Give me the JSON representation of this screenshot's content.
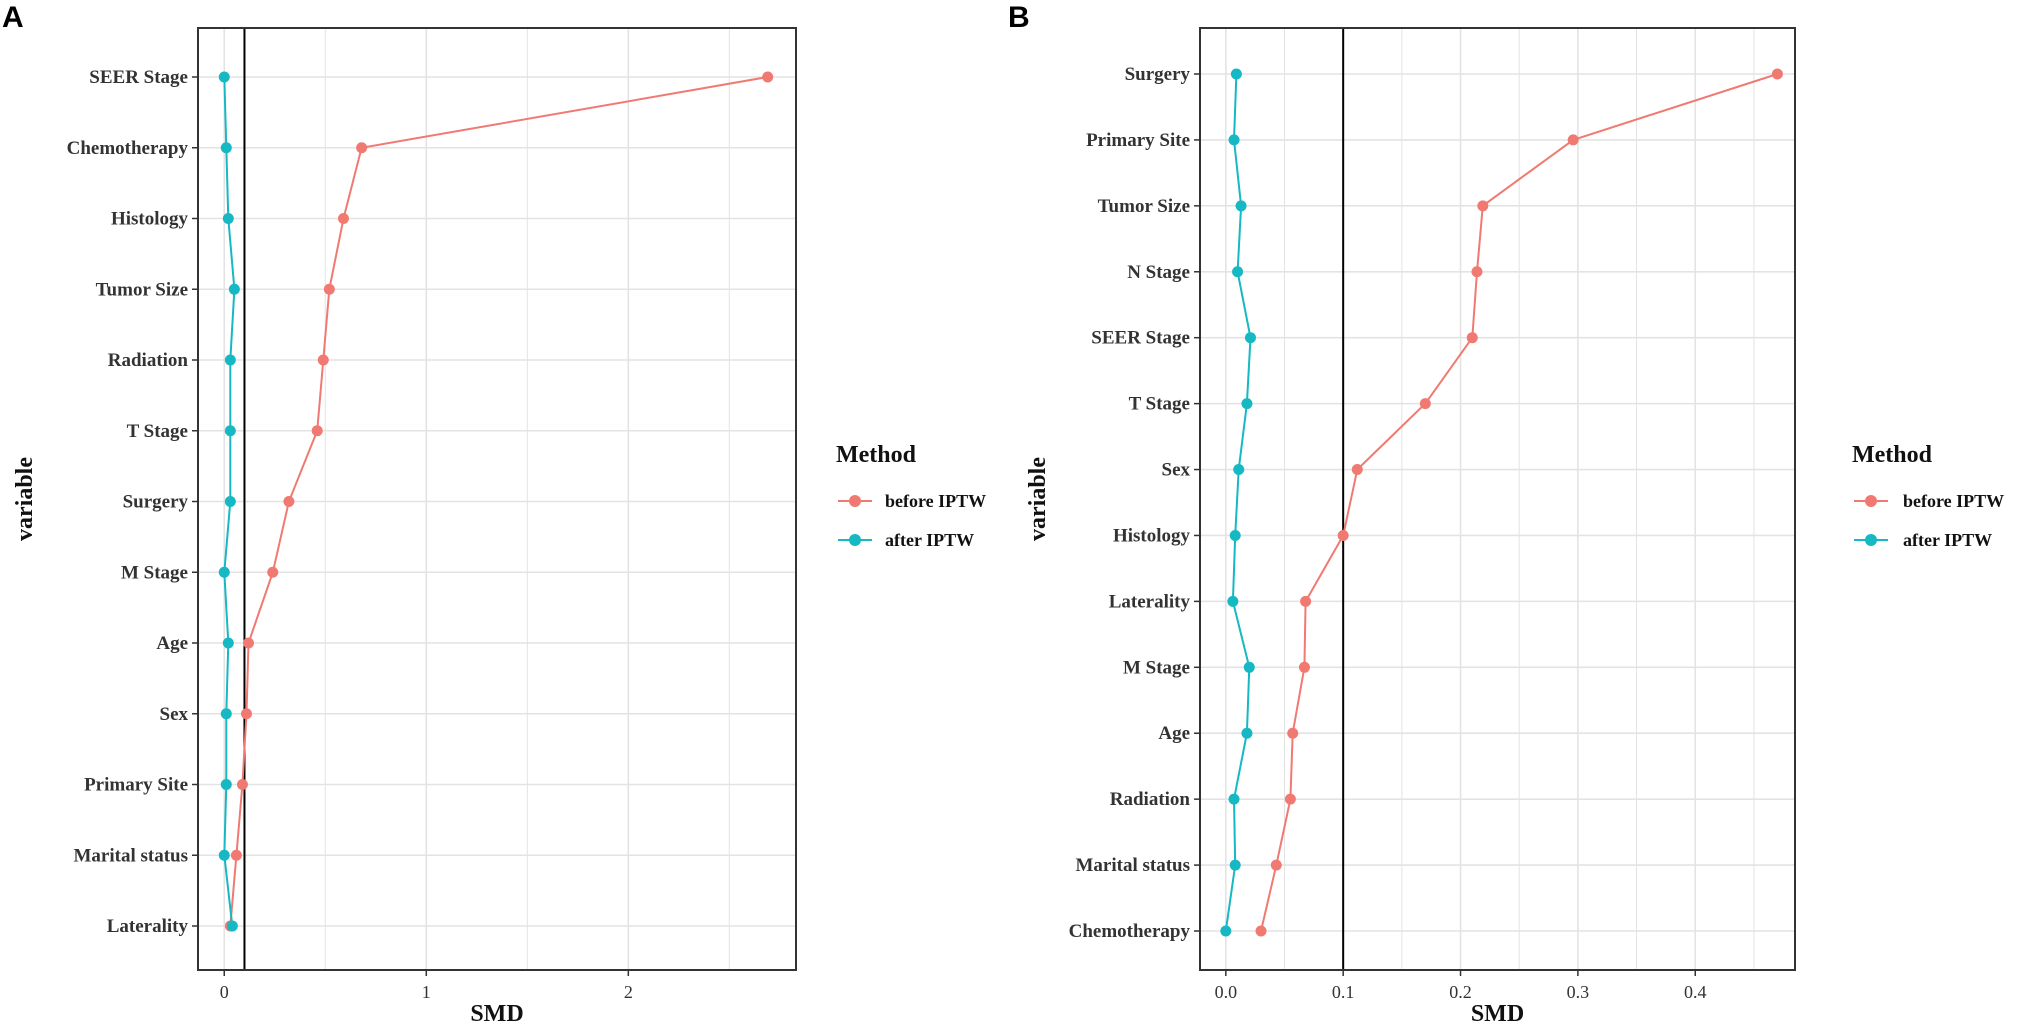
{
  "figure": {
    "legend_title": "Method",
    "series_names": [
      "before IPTW",
      "after IPTW"
    ],
    "colors": {
      "before": "#F07A72",
      "after": "#15B8C3",
      "grid": "#E3E3E3",
      "refline": "#000000"
    }
  },
  "chart_data": [
    {
      "panel_label": "A",
      "type": "line",
      "title": "",
      "xlabel": "SMD",
      "ylabel": "variable",
      "xlim": [
        -0.13,
        2.83
      ],
      "xticks": [
        0,
        1,
        2
      ],
      "xtick_labels": [
        "0",
        "1",
        "2"
      ],
      "reference_line": 0.1,
      "grid": true,
      "legend_position": "right",
      "categories": [
        "SEER Stage",
        "Chemotherapy",
        "Histology",
        "Tumor Size",
        "Radiation",
        "T Stage",
        "Surgery",
        "M Stage",
        "Age",
        "Sex",
        "Primary Site",
        "Marital status",
        "Laterality"
      ],
      "series": [
        {
          "name": "before IPTW",
          "values": [
            2.69,
            0.68,
            0.59,
            0.52,
            0.49,
            0.46,
            0.32,
            0.24,
            0.12,
            0.11,
            0.09,
            0.06,
            0.03
          ]
        },
        {
          "name": "after IPTW",
          "values": [
            0.0,
            0.01,
            0.02,
            0.05,
            0.03,
            0.03,
            0.03,
            0.0,
            0.02,
            0.01,
            0.01,
            0.0,
            0.04
          ]
        }
      ]
    },
    {
      "panel_label": "B",
      "type": "line",
      "title": "",
      "xlabel": "SMD",
      "ylabel": "variable",
      "xlim": [
        -0.022,
        0.485
      ],
      "xticks": [
        0.0,
        0.1,
        0.2,
        0.3,
        0.4
      ],
      "xtick_labels": [
        "0.0",
        "0.1",
        "0.2",
        "0.3",
        "0.4"
      ],
      "reference_line": 0.1,
      "grid": true,
      "legend_position": "right",
      "categories": [
        "Surgery",
        "Primary Site",
        "Tumor Size",
        "N Stage",
        "SEER Stage",
        "T Stage",
        "Sex",
        "Histology",
        "Laterality",
        "M Stage",
        "Age",
        "Radiation",
        "Marital status",
        "Chemotherapy"
      ],
      "series": [
        {
          "name": "before IPTW",
          "values": [
            0.47,
            0.296,
            0.219,
            0.214,
            0.21,
            0.17,
            0.112,
            0.1,
            0.068,
            0.067,
            0.057,
            0.055,
            0.043,
            0.03
          ]
        },
        {
          "name": "after IPTW",
          "values": [
            0.009,
            0.007,
            0.013,
            0.01,
            0.021,
            0.018,
            0.011,
            0.008,
            0.006,
            0.02,
            0.018,
            0.007,
            0.008,
            0.0
          ]
        }
      ]
    }
  ]
}
